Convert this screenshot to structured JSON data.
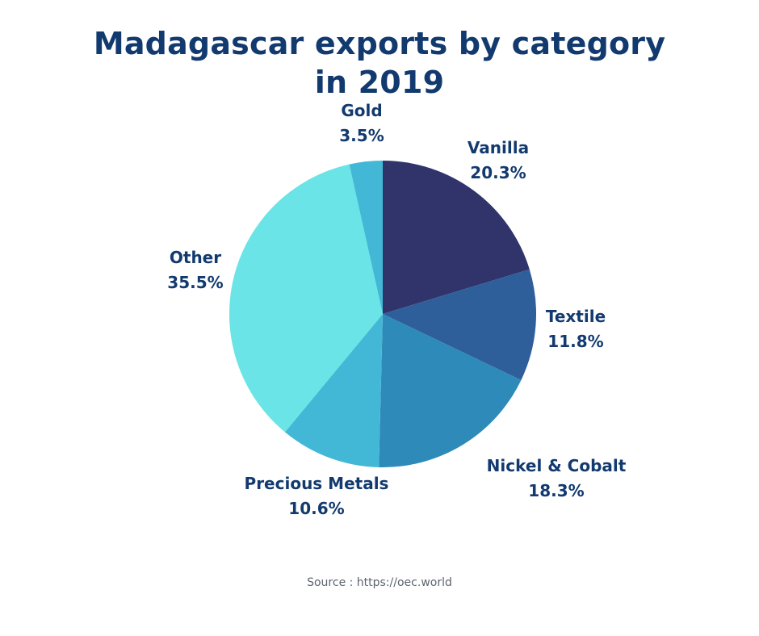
{
  "title_line1": "Madagascar exports by category",
  "title_line2": "in 2019",
  "source": "Source : https://oec.world",
  "chart_data": {
    "type": "pie",
    "title": "Madagascar exports by category in 2019",
    "start": "12 o'clock, clockwise",
    "slices": [
      {
        "label": "Vanilla",
        "value": 20.3,
        "value_label": "20.3%",
        "color": "#30346b"
      },
      {
        "label": "Textile",
        "value": 11.8,
        "value_label": "11.8%",
        "color": "#2e5f9a"
      },
      {
        "label": "Nickel & Cobalt",
        "value": 18.3,
        "value_label": "18.3%",
        "color": "#2e8ab9"
      },
      {
        "label": "Precious Metals",
        "value": 10.6,
        "value_label": "10.6%",
        "color": "#43b8d6"
      },
      {
        "label": "Other",
        "value": 35.5,
        "value_label": "35.5%",
        "color": "#6ae4e6"
      },
      {
        "label": "Gold",
        "value": 3.5,
        "value_label": "3.5%",
        "color": "#43b8d6"
      }
    ]
  }
}
